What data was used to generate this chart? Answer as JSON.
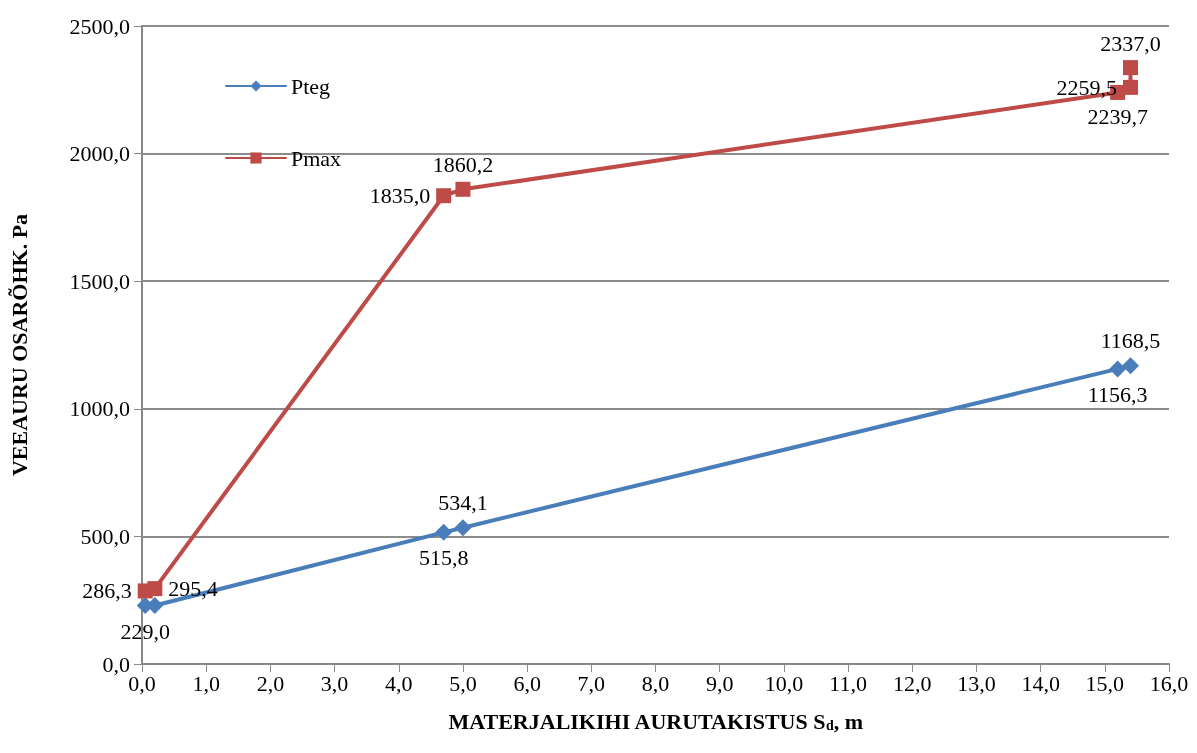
{
  "chart_data": {
    "type": "line",
    "xlabel": "MATERJALIKIHI AURUTAKISTUS S$_{d}$, m",
    "ylabel": "VEEAURU OSARÕHK. Pa",
    "xlim": [
      0,
      16
    ],
    "xticks": [
      {
        "value": 0,
        "label": "0,0"
      },
      {
        "value": 1,
        "label": "1,0"
      },
      {
        "value": 2,
        "label": "2,0"
      },
      {
        "value": 3,
        "label": "3,0"
      },
      {
        "value": 4,
        "label": "4,0"
      },
      {
        "value": 5,
        "label": "5,0"
      },
      {
        "value": 6,
        "label": "6,0"
      },
      {
        "value": 7,
        "label": "7,0"
      },
      {
        "value": 8,
        "label": "8,0"
      },
      {
        "value": 9,
        "label": "9,0"
      },
      {
        "value": 10,
        "label": "10,0"
      },
      {
        "value": 11,
        "label": "11,0"
      },
      {
        "value": 12,
        "label": "12,0"
      },
      {
        "value": 13,
        "label": "13,0"
      },
      {
        "value": 14,
        "label": "14,0"
      },
      {
        "value": 15,
        "label": "15,0"
      },
      {
        "value": 16,
        "label": "16,0"
      }
    ],
    "ylim": [
      0,
      2500
    ],
    "yticks": [
      {
        "value": 0,
        "label": "0,0"
      },
      {
        "value": 500,
        "label": "500,0"
      },
      {
        "value": 1000,
        "label": "1000,0"
      },
      {
        "value": 1500,
        "label": "1500,0"
      },
      {
        "value": 2000,
        "label": "2000,0"
      },
      {
        "value": 2500,
        "label": "2500,0"
      }
    ],
    "grid": "y",
    "legend": "top left",
    "line_style": "solid",
    "series": [
      {
        "name": "Pteg",
        "color": "#4a7ebb",
        "marker": "diamond",
        "x": [
          0.05,
          0.2,
          4.7,
          5.0,
          15.2,
          15.4
        ],
        "values": [
          229.0,
          229.0,
          515.8,
          534.1,
          1156.3,
          1168.5
        ],
        "value_labels": [
          "229,0",
          null,
          "515,8",
          "534,1",
          "1156,3",
          "1168,5"
        ]
      },
      {
        "name": "Pmax",
        "color": "#be4b48",
        "marker": "square",
        "x": [
          0.05,
          0.2,
          4.7,
          5.0,
          15.2,
          15.4,
          15.4
        ],
        "values": [
          286.3,
          295.4,
          1835.0,
          1860.2,
          2239.7,
          2259.5,
          2337.0
        ],
        "value_labels": [
          "286,3",
          "295,4",
          "1835,0",
          "1860,2",
          "2239,7",
          "2259,5",
          "2337,0"
        ]
      }
    ]
  }
}
